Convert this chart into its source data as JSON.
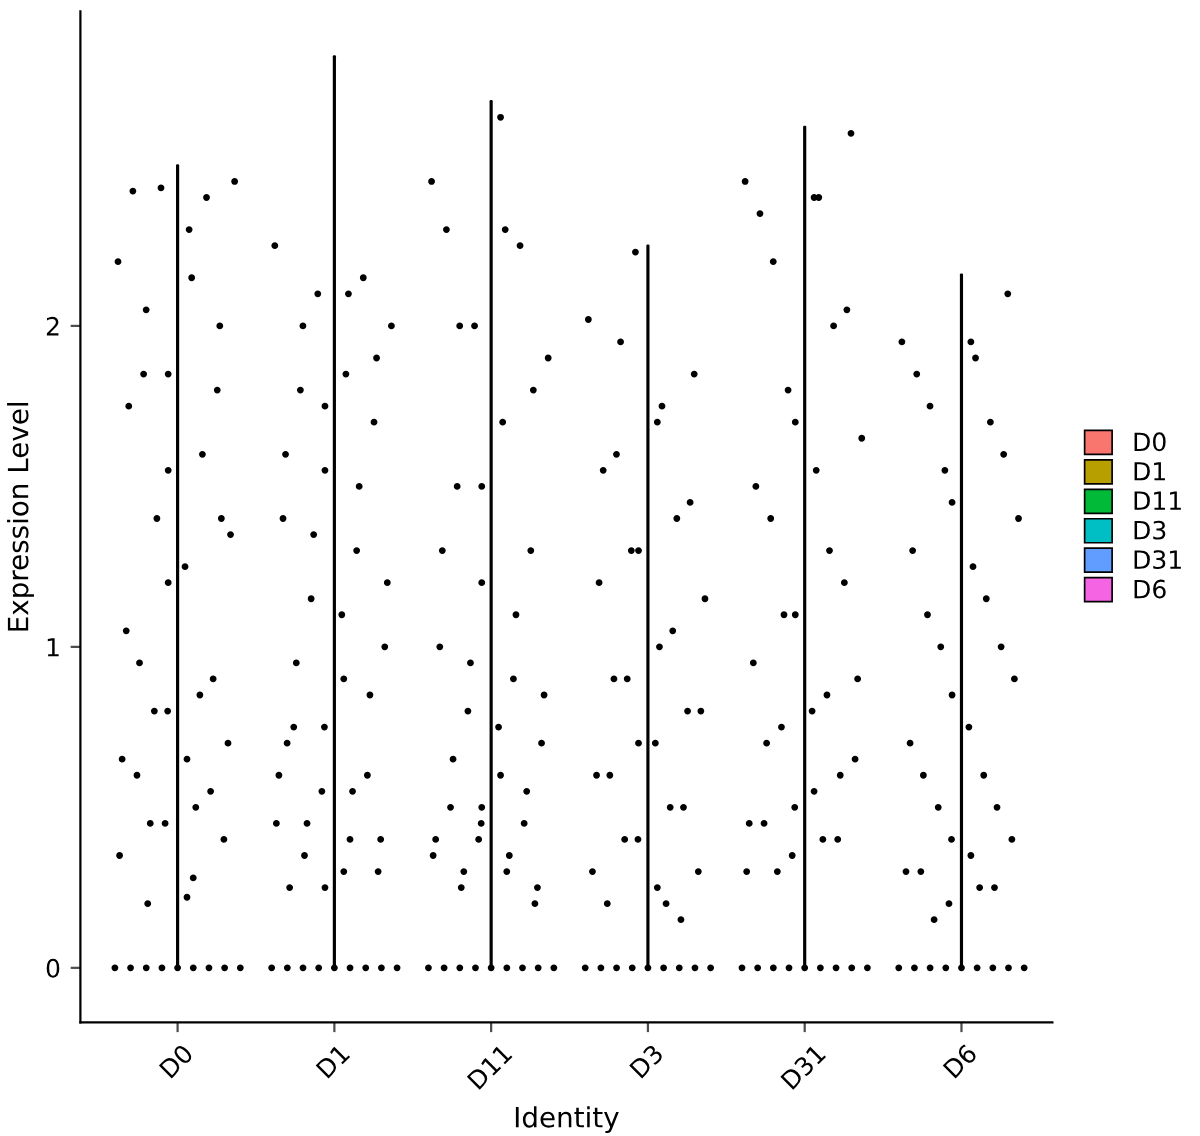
{
  "chart_data": {
    "type": "scatter",
    "xlabel": "Identity",
    "ylabel": "Expression Level",
    "categories": [
      "D0",
      "D1",
      "D11",
      "D3",
      "D31",
      "D6"
    ],
    "ylim": [
      -0.17,
      2.98
    ],
    "yticks": [
      0,
      1,
      2
    ],
    "grid": false,
    "legend": "right",
    "series": [
      {
        "type": "area",
        "name": "D0",
        "color": "#F8766D",
        "x": [
          "D0",
          "D0"
        ],
        "values": [
          0,
          2.5
        ]
      },
      {
        "type": "area",
        "name": "D1",
        "color": "#B79F00",
        "x": [
          "D1",
          "D1"
        ],
        "values": [
          0,
          2.84
        ]
      },
      {
        "type": "area",
        "name": "D11",
        "color": "#00BA38",
        "x": [
          "D11",
          "D11"
        ],
        "values": [
          0,
          2.7
        ]
      },
      {
        "type": "area",
        "name": "D3",
        "color": "#00BFC4",
        "x": [
          "D3",
          "D3"
        ],
        "values": [
          0,
          2.25
        ]
      },
      {
        "type": "area",
        "name": "D31",
        "color": "#619CFF",
        "x": [
          "D31",
          "D31"
        ],
        "values": [
          0,
          2.62
        ]
      },
      {
        "type": "area",
        "name": "D6",
        "color": "#F564E3",
        "x": [
          "D6",
          "D6"
        ],
        "values": [
          0,
          2.16
        ]
      },
      {
        "color": "#000000",
        "marker": "circle",
        "x": [
          "D0",
          "D0",
          "D0",
          "D0",
          "D0",
          "D0",
          "D0",
          "D0",
          "D0",
          "D0",
          "D0",
          "D0",
          "D0",
          "D0",
          "D0",
          "D0",
          "D0",
          "D0",
          "D0",
          "D0",
          "D0",
          "D0",
          "D0",
          "D0",
          "D0",
          "D0",
          "D0",
          "D0",
          "D0",
          "D0",
          "D0",
          "D0",
          "D0",
          "D0",
          "D0",
          "D0",
          "D0",
          "D0",
          "D0",
          "D0",
          "D0",
          "D0",
          "D0",
          "D0",
          "D0",
          "D0",
          "D0",
          "D0"
        ],
        "values": [
          2.2,
          2.15,
          2.05,
          2.0,
          1.85,
          1.75,
          1.6,
          1.4,
          1.35,
          1.25,
          0.95,
          0.9,
          0.8,
          0.65,
          0.5,
          0.45,
          0.4,
          0.22,
          2.42,
          2.4,
          2.43,
          2.45,
          2.3,
          1.85,
          1.8,
          1.55,
          1.05,
          0.85,
          0.8,
          0.7,
          0.65,
          0.6,
          0.55,
          0.45,
          0.35,
          0.28,
          0.2,
          1.4,
          1.2,
          0,
          0,
          0,
          0,
          0,
          0,
          0,
          0,
          0
        ]
      },
      {
        "color": "#000000",
        "marker": "circle",
        "x": [
          "D1",
          "D1",
          "D1",
          "D1",
          "D1",
          "D1",
          "D1",
          "D1",
          "D1",
          "D1",
          "D1",
          "D1",
          "D1",
          "D1",
          "D1",
          "D1",
          "D1",
          "D1",
          "D1",
          "D1",
          "D1",
          "D1",
          "D1",
          "D1",
          "D1",
          "D1",
          "D1",
          "D1",
          "D1",
          "D1",
          "D1",
          "D1",
          "D1",
          "D1",
          "D1",
          "D1",
          "D1",
          "D1",
          "D1",
          "D1",
          "D1",
          "D1",
          "D1",
          "D1",
          "D1",
          "D1",
          "D1",
          "D1",
          "D1"
        ],
        "values": [
          2.25,
          2.1,
          2.0,
          1.9,
          1.75,
          1.6,
          1.5,
          1.35,
          1.2,
          1.1,
          0.95,
          0.85,
          0.75,
          0.6,
          0.55,
          0.45,
          0.4,
          0.3,
          0.25,
          2.15,
          2.1,
          2.0,
          1.85,
          1.8,
          1.7,
          1.55,
          1.4,
          1.3,
          1.15,
          1.0,
          0.9,
          0.75,
          0.6,
          0.55,
          0.45,
          0.4,
          0.35,
          0.3,
          0.25,
          0.7,
          0,
          0,
          0,
          0,
          0,
          0,
          0,
          0,
          0
        ]
      },
      {
        "color": "#000000",
        "marker": "circle",
        "x": [
          "D11",
          "D11",
          "D11",
          "D11",
          "D11",
          "D11",
          "D11",
          "D11",
          "D11",
          "D11",
          "D11",
          "D11",
          "D11",
          "D11",
          "D11",
          "D11",
          "D11",
          "D11",
          "D11",
          "D11",
          "D11",
          "D11",
          "D11",
          "D11",
          "D11",
          "D11",
          "D11",
          "D11",
          "D11",
          "D11",
          "D11",
          "D11",
          "D11",
          "D11",
          "D11",
          "D11",
          "D11",
          "D11",
          "D11",
          "D11",
          "D11",
          "D11",
          "D11",
          "D11",
          "D11",
          "D11",
          "D11",
          "D11"
        ],
        "values": [
          2.45,
          2.3,
          2.0,
          1.8,
          1.5,
          1.3,
          1.1,
          0.95,
          0.85,
          0.75,
          0.65,
          0.55,
          0.45,
          0.4,
          0.35,
          0.3,
          0.25,
          2.65,
          2.3,
          2.25,
          2.0,
          1.9,
          1.7,
          1.5,
          1.3,
          1.2,
          1.0,
          0.9,
          0.8,
          0.7,
          0.6,
          0.5,
          0.45,
          0.4,
          0.35,
          0.3,
          0.25,
          0.2,
          0.5,
          0,
          0,
          0,
          0,
          0,
          0,
          0,
          0,
          0
        ]
      },
      {
        "color": "#000000",
        "marker": "circle",
        "x": [
          "D3",
          "D3",
          "D3",
          "D3",
          "D3",
          "D3",
          "D3",
          "D3",
          "D3",
          "D3",
          "D3",
          "D3",
          "D3",
          "D3",
          "D3",
          "D3",
          "D3",
          "D3",
          "D3",
          "D3",
          "D3",
          "D3",
          "D3",
          "D3",
          "D3",
          "D3",
          "D3",
          "D3",
          "D3",
          "D3",
          "D3",
          "D3",
          "D3",
          "D3",
          "D3",
          "D3",
          "D3",
          "D3",
          "D3",
          "D3",
          "D3",
          "D3",
          "D3"
        ],
        "values": [
          2.02,
          1.75,
          1.6,
          1.45,
          1.3,
          1.2,
          1.05,
          0.9,
          0.8,
          0.7,
          0.6,
          0.5,
          0.4,
          0.3,
          0.2,
          1.95,
          1.85,
          1.7,
          1.55,
          1.4,
          1.3,
          1.15,
          1.0,
          0.9,
          0.8,
          0.7,
          0.6,
          0.5,
          0.4,
          0.3,
          0.25,
          0.2,
          0.15,
          2.23,
          0,
          0,
          0,
          0,
          0,
          0,
          0,
          0,
          0
        ]
      },
      {
        "color": "#000000",
        "marker": "circle",
        "x": [
          "D31",
          "D31",
          "D31",
          "D31",
          "D31",
          "D31",
          "D31",
          "D31",
          "D31",
          "D31",
          "D31",
          "D31",
          "D31",
          "D31",
          "D31",
          "D31",
          "D31",
          "D31",
          "D31",
          "D31",
          "D31",
          "D31",
          "D31",
          "D31",
          "D31",
          "D31",
          "D31",
          "D31",
          "D31",
          "D31",
          "D31",
          "D31",
          "D31",
          "D31",
          "D31",
          "D31",
          "D31",
          "D31",
          "D31",
          "D31",
          "D31",
          "D31",
          "D31",
          "D31"
        ],
        "values": [
          2.45,
          2.4,
          2.2,
          2.05,
          1.7,
          1.5,
          1.3,
          1.1,
          0.9,
          0.8,
          0.7,
          0.6,
          0.5,
          0.45,
          0.4,
          0.3,
          2.6,
          2.4,
          2.35,
          2.0,
          1.8,
          1.65,
          1.55,
          1.4,
          1.2,
          1.1,
          0.95,
          0.85,
          0.75,
          0.65,
          0.55,
          0.45,
          0.4,
          0.35,
          0.3,
          0,
          0,
          0,
          0,
          0,
          0,
          0,
          0,
          0
        ]
      },
      {
        "color": "#000000",
        "marker": "circle",
        "x": [
          "D6",
          "D6",
          "D6",
          "D6",
          "D6",
          "D6",
          "D6",
          "D6",
          "D6",
          "D6",
          "D6",
          "D6",
          "D6",
          "D6",
          "D6",
          "D6",
          "D6",
          "D6",
          "D6",
          "D6",
          "D6",
          "D6",
          "D6",
          "D6",
          "D6",
          "D6",
          "D6",
          "D6",
          "D6",
          "D6",
          "D6",
          "D6",
          "D6",
          "D6",
          "D6",
          "D6",
          "D6",
          "D6",
          "D6",
          "D6",
          "D6",
          "D6",
          "D6"
        ],
        "values": [
          1.95,
          1.9,
          1.75,
          1.6,
          1.45,
          1.3,
          1.15,
          1.0,
          0.9,
          0.75,
          0.6,
          0.5,
          0.4,
          0.3,
          0.25,
          0.15,
          2.1,
          1.95,
          1.85,
          1.7,
          1.55,
          1.4,
          1.25,
          1.1,
          1.0,
          0.85,
          0.7,
          0.6,
          0.5,
          0.4,
          0.35,
          0.3,
          0.25,
          0.2,
          0,
          0,
          0,
          0,
          0,
          0,
          0,
          0,
          0
        ]
      }
    ]
  }
}
